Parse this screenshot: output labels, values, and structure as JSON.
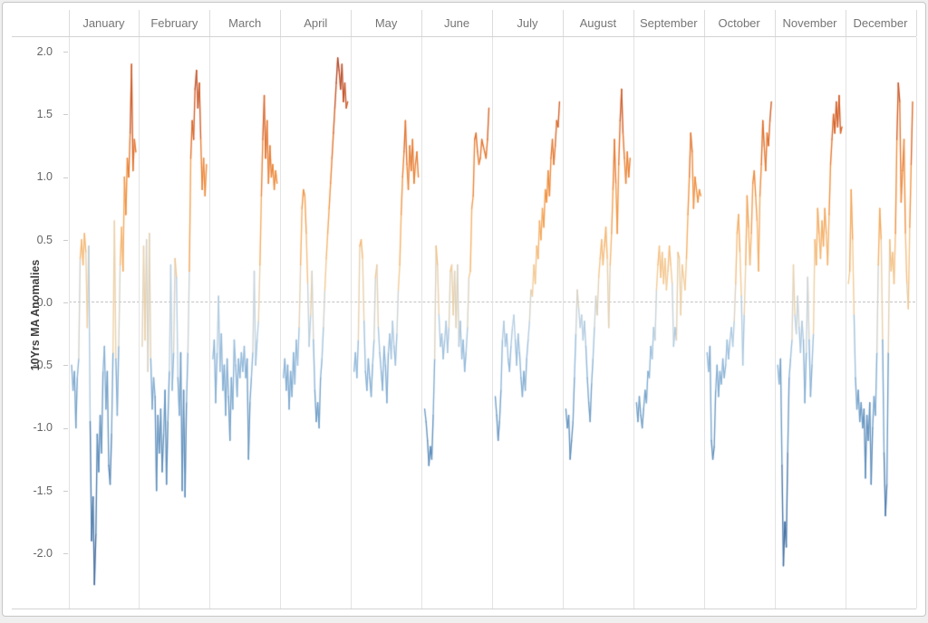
{
  "frame": {
    "background": "#ffffff",
    "border_color": "#c6c6c6",
    "page_background": "#efefef"
  },
  "months": [
    "January",
    "February",
    "March",
    "April",
    "May",
    "June",
    "July",
    "August",
    "September",
    "October",
    "November",
    "December"
  ],
  "axis": {
    "title": "10Yrs MA Anomalies",
    "ticks": [
      "2.0",
      "1.5",
      "1.0",
      "0.5",
      "0.0",
      "-0.5",
      "-1.0",
      "-1.5",
      "-2.0"
    ],
    "tick_values": [
      2.0,
      1.5,
      1.0,
      0.5,
      0.0,
      -0.5,
      -1.0,
      -1.5,
      -2.0
    ]
  },
  "chart_data": {
    "type": "line",
    "title": "",
    "ylabel": "10Yrs MA Anomalies",
    "xlabel": "",
    "x_tick_labels": [],
    "ylim": [
      -2.45,
      2.12
    ],
    "grid": false,
    "zero_line_dashed": true,
    "facets": "12 small-multiple columns, one per month; x within each facet is an unlabeled time index",
    "line_color_encoding": "diverging blue-to-orange by y value",
    "palette_stops": [
      [
        -2.3,
        "#3d6394"
      ],
      [
        -1.5,
        "#4d7eb0"
      ],
      [
        -0.9,
        "#6f9dc6"
      ],
      [
        -0.45,
        "#94badb"
      ],
      [
        -0.15,
        "#bdd2e3"
      ],
      [
        0.0,
        "#d9d2c2"
      ],
      [
        0.15,
        "#f2cf9e"
      ],
      [
        0.5,
        "#f5b269"
      ],
      [
        0.9,
        "#f0913f"
      ],
      [
        1.3,
        "#e2702b"
      ],
      [
        1.7,
        "#c35126"
      ],
      [
        2.0,
        "#a8432a"
      ]
    ],
    "series": [
      {
        "name": "January",
        "values": [
          -0.5,
          -0.7,
          -0.55,
          -1.0,
          -0.6,
          -0.45,
          0.35,
          0.5,
          0.3,
          0.55,
          0.4,
          -0.2,
          0.45,
          -0.95,
          -1.9,
          -1.55,
          -2.25,
          -1.85,
          -1.05,
          -1.35,
          -0.9,
          -1.2,
          -0.55,
          -0.35,
          -0.85,
          -0.55,
          -1.3,
          -1.45,
          -1.05,
          -0.4,
          0.65,
          -0.45,
          -0.9,
          -0.35,
          0.3,
          0.6,
          0.25,
          1.0,
          0.7,
          1.15,
          1.0,
          1.35,
          1.9,
          1.05,
          1.3,
          1.2
        ]
      },
      {
        "name": "February",
        "values": [
          -0.35,
          0.45,
          -0.3,
          0.5,
          -0.55,
          0.55,
          -0.45,
          -0.85,
          -0.6,
          -0.75,
          -1.5,
          -0.9,
          -1.2,
          -0.85,
          -1.35,
          -1.05,
          -0.7,
          -1.45,
          -0.95,
          -0.55,
          0.3,
          -0.7,
          -0.4,
          0.35,
          0.2,
          -0.6,
          -0.9,
          -0.4,
          -1.5,
          -0.7,
          -1.55,
          -0.8,
          -0.4,
          0.25,
          1.15,
          1.45,
          1.3,
          1.7,
          1.85,
          1.55,
          1.75,
          1.3,
          0.9,
          1.15,
          0.85,
          1.1
        ]
      },
      {
        "name": "March",
        "values": [
          -0.45,
          -0.3,
          -0.8,
          -0.4,
          0.05,
          -0.55,
          -0.25,
          -0.7,
          -0.5,
          -0.9,
          -0.45,
          -0.75,
          -1.1,
          -0.6,
          -0.85,
          -0.3,
          -0.5,
          -0.75,
          -0.45,
          -0.6,
          -0.4,
          -0.55,
          -0.35,
          -0.6,
          -0.45,
          -1.25,
          -0.8,
          -0.6,
          -0.4,
          0.25,
          -0.5,
          -0.3,
          -0.15,
          0.3,
          0.85,
          1.3,
          1.65,
          1.15,
          1.45,
          0.95,
          1.25,
          1.0,
          1.1,
          0.9,
          1.05,
          0.95
        ]
      },
      {
        "name": "April",
        "values": [
          -0.6,
          -0.45,
          -0.7,
          -0.5,
          -0.85,
          -0.55,
          -0.75,
          -0.4,
          -0.65,
          -0.3,
          -0.5,
          -0.2,
          0.3,
          0.75,
          0.9,
          0.85,
          0.55,
          0.15,
          -0.35,
          -0.1,
          0.25,
          -0.3,
          -0.7,
          -0.95,
          -0.8,
          -1.0,
          -0.6,
          -0.45,
          -0.2,
          0.1,
          0.35,
          0.55,
          0.75,
          0.95,
          1.15,
          1.35,
          1.55,
          1.75,
          1.95,
          1.85,
          1.7,
          1.9,
          1.6,
          1.75,
          1.55,
          1.6
        ]
      },
      {
        "name": "May",
        "values": [
          -0.55,
          -0.4,
          -0.6,
          -0.3,
          0.45,
          0.5,
          0.35,
          -0.15,
          -0.55,
          -0.7,
          -0.45,
          -0.6,
          -0.75,
          -0.5,
          -0.3,
          0.2,
          0.3,
          -0.2,
          -0.4,
          -0.55,
          -0.7,
          -0.35,
          -0.5,
          -0.8,
          -0.4,
          -0.25,
          -0.45,
          -0.15,
          -0.35,
          -0.5,
          -0.25,
          0.1,
          0.3,
          0.7,
          1.0,
          1.2,
          1.45,
          1.1,
          0.9,
          1.25,
          1.05,
          1.3,
          0.95,
          1.1,
          1.2,
          1.0
        ]
      },
      {
        "name": "June",
        "values": [
          -0.85,
          -0.95,
          -1.1,
          -1.3,
          -1.15,
          -1.25,
          -0.9,
          -0.45,
          0.45,
          0.3,
          -0.1,
          -0.35,
          -0.25,
          -0.45,
          -0.3,
          -0.15,
          -0.4,
          -0.2,
          0.25,
          0.3,
          -0.1,
          0.25,
          -0.2,
          0.3,
          -0.35,
          -0.15,
          -0.45,
          -0.3,
          -0.55,
          -0.4,
          -0.2,
          0.2,
          0.25,
          0.75,
          0.85,
          1.3,
          1.35,
          1.2,
          1.1,
          1.15,
          1.3,
          1.25,
          1.2,
          1.15,
          1.3,
          1.55
        ]
      },
      {
        "name": "July",
        "values": [
          -0.75,
          -0.9,
          -1.1,
          -0.95,
          -0.7,
          -0.3,
          -0.15,
          -0.35,
          -0.25,
          -0.45,
          -0.55,
          -0.35,
          -0.2,
          -0.1,
          -0.3,
          -0.5,
          -0.25,
          -0.4,
          -0.6,
          -0.75,
          -0.55,
          -0.7,
          -0.45,
          -0.3,
          -0.15,
          0.1,
          0.05,
          0.3,
          0.15,
          0.45,
          0.35,
          0.65,
          0.5,
          0.75,
          0.6,
          0.9,
          0.8,
          1.05,
          0.85,
          1.15,
          1.3,
          1.1,
          1.25,
          1.45,
          1.4,
          1.6
        ]
      },
      {
        "name": "August",
        "values": [
          -0.85,
          -1.0,
          -0.9,
          -1.25,
          -1.1,
          -0.95,
          -0.6,
          -0.25,
          0.1,
          -0.05,
          -0.2,
          -0.1,
          -0.3,
          -0.15,
          -0.35,
          -0.6,
          -0.8,
          -0.95,
          -0.65,
          -0.45,
          -0.2,
          0.05,
          -0.1,
          0.2,
          0.35,
          0.5,
          0.3,
          0.45,
          0.6,
          0.35,
          -0.2,
          0.3,
          0.55,
          0.9,
          1.3,
          0.95,
          0.55,
          1.1,
          1.45,
          1.7,
          1.35,
          1.15,
          0.95,
          1.2,
          1.0,
          1.15
        ]
      },
      {
        "name": "September",
        "values": [
          -0.8,
          -0.95,
          -0.75,
          -0.9,
          -1.0,
          -0.85,
          -0.7,
          -0.8,
          -0.55,
          -0.6,
          -0.35,
          -0.45,
          -0.2,
          -0.3,
          0.1,
          0.3,
          0.45,
          0.2,
          0.4,
          0.15,
          0.35,
          0.1,
          0.25,
          0.45,
          0.3,
          0.15,
          -0.35,
          -0.2,
          -0.3,
          0.4,
          0.35,
          -0.1,
          0.3,
          0.2,
          0.1,
          0.35,
          0.7,
          1.0,
          1.35,
          1.2,
          0.75,
          1.0,
          0.9,
          0.8,
          0.9,
          0.85
        ]
      },
      {
        "name": "October",
        "values": [
          -0.4,
          -0.55,
          -0.35,
          -1.1,
          -1.25,
          -1.15,
          -0.7,
          -0.5,
          -0.75,
          -0.55,
          -0.65,
          -0.45,
          -0.6,
          -0.5,
          -0.3,
          -0.45,
          -0.3,
          -0.2,
          -0.35,
          -0.15,
          0.15,
          0.55,
          0.7,
          0.4,
          0.05,
          -0.5,
          -0.1,
          0.3,
          0.85,
          0.6,
          0.3,
          0.55,
          0.95,
          1.05,
          0.85,
          0.65,
          0.25,
          0.85,
          1.1,
          1.45,
          1.25,
          1.05,
          1.35,
          1.25,
          1.45,
          1.6
        ]
      },
      {
        "name": "November",
        "values": [
          -0.5,
          -0.65,
          -0.45,
          -1.3,
          -2.1,
          -1.75,
          -1.95,
          -1.2,
          -0.6,
          -0.45,
          -0.3,
          0.3,
          -0.1,
          -0.25,
          0.05,
          -0.2,
          -0.4,
          -0.15,
          -0.3,
          -0.8,
          -0.4,
          0.2,
          -0.3,
          -0.75,
          -0.5,
          -0.25,
          0.5,
          0.3,
          0.75,
          0.55,
          0.35,
          0.65,
          0.45,
          0.75,
          0.55,
          0.3,
          0.7,
          1.1,
          1.3,
          1.5,
          1.35,
          1.6,
          1.4,
          1.65,
          1.35,
          1.4
        ]
      },
      {
        "name": "December",
        "values": [
          0.15,
          0.25,
          0.9,
          0.5,
          -0.1,
          -0.6,
          -0.85,
          -0.7,
          -0.95,
          -0.8,
          -1.0,
          -0.85,
          -1.4,
          -0.9,
          -1.1,
          -0.8,
          -1.45,
          -1.0,
          -0.75,
          -0.9,
          -0.4,
          0.3,
          0.75,
          0.5,
          -0.3,
          -1.2,
          -1.7,
          -1.45,
          -0.4,
          0.5,
          0.25,
          0.4,
          0.15,
          0.55,
          1.3,
          1.75,
          1.6,
          0.8,
          1.05,
          1.3,
          0.55,
          0.15,
          -0.05,
          0.6,
          1.1,
          1.6
        ]
      }
    ]
  }
}
